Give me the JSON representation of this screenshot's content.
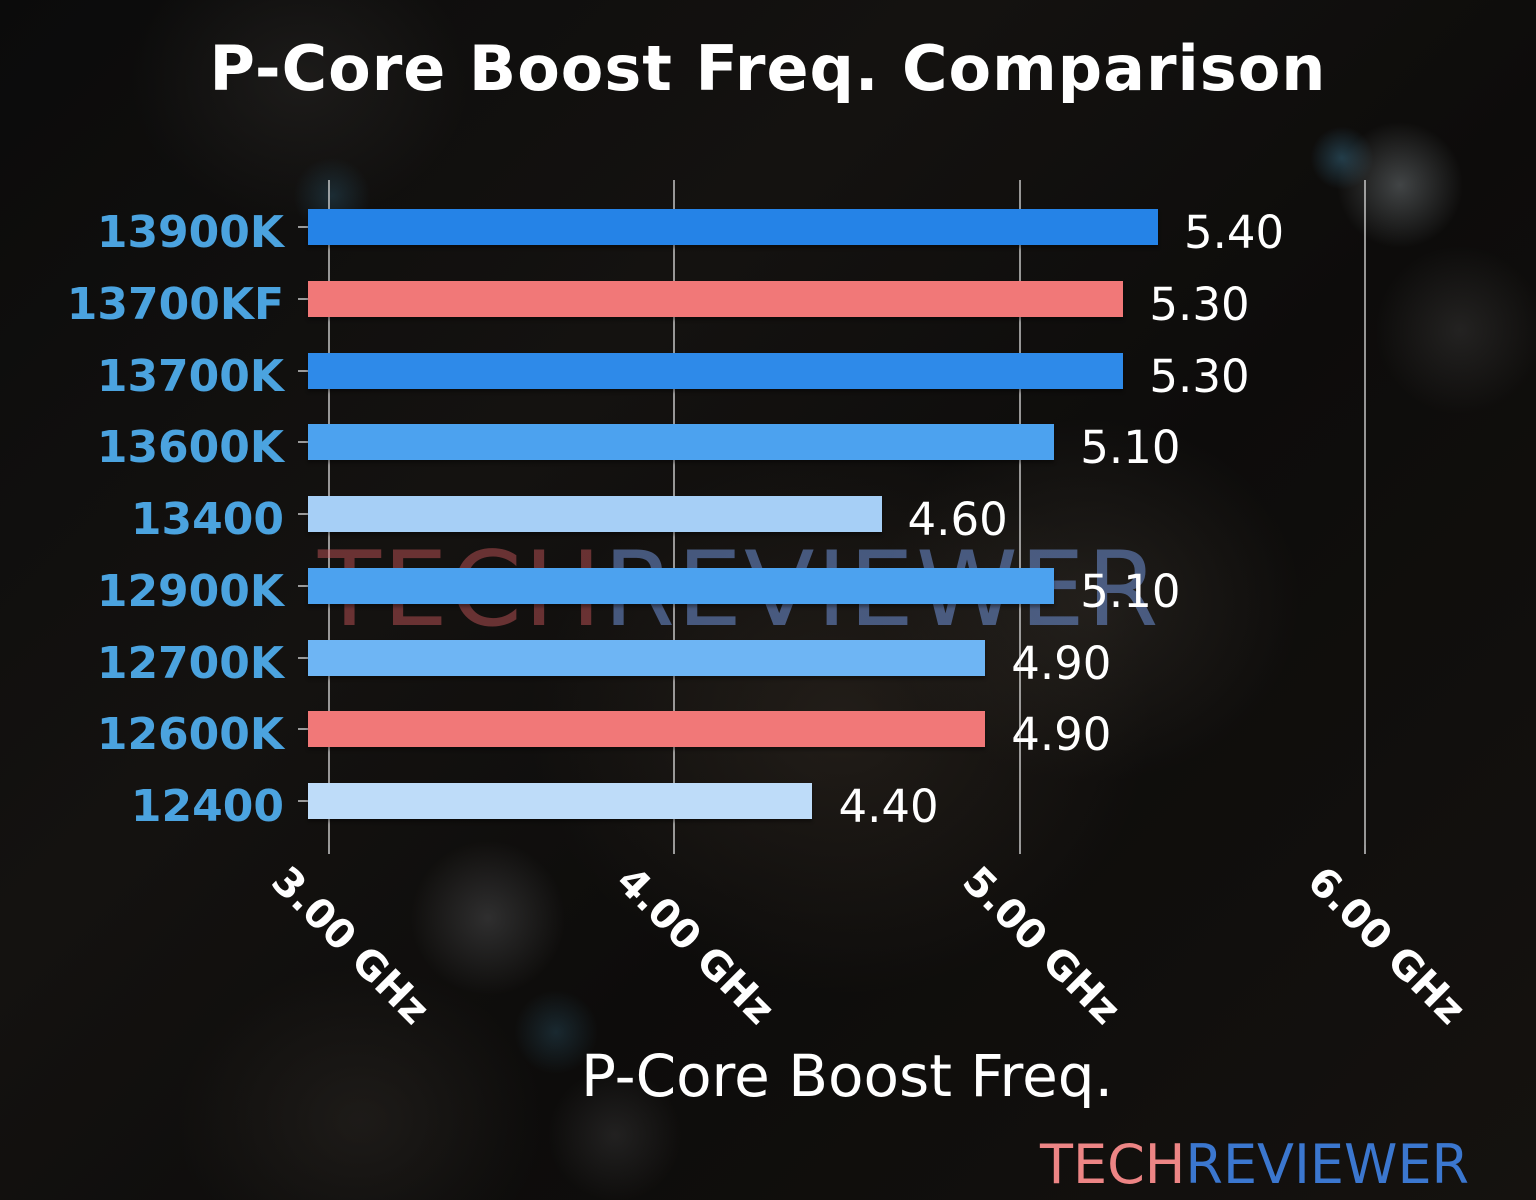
{
  "chart_data": {
    "type": "bar",
    "orientation": "horizontal",
    "title": "P-Core Boost Freq. Comparison",
    "xlabel": "P-Core Boost Freq.",
    "categories": [
      "13900K",
      "13700KF",
      "13700K",
      "13600K",
      "13400",
      "12900K",
      "12700K",
      "12600K",
      "12400"
    ],
    "values": [
      5.4,
      5.3,
      5.3,
      5.1,
      4.6,
      5.1,
      4.9,
      4.9,
      4.4
    ],
    "value_labels": [
      "5.40",
      "5.30",
      "5.30",
      "5.10",
      "4.60",
      "5.10",
      "4.90",
      "4.90",
      "4.40"
    ],
    "bar_colors": [
      "#2583E7",
      "#F17878",
      "#2E8AE9",
      "#4CA2EF",
      "#A6CFF6",
      "#4CA2EF",
      "#6EB5F4",
      "#F17878",
      "#BEDCF9"
    ],
    "highlighted_categories": [
      "13700KF",
      "12600K"
    ],
    "highlight_color": "#F17878",
    "x_tick_values": [
      3,
      4,
      5,
      6
    ],
    "x_tick_labels": [
      "3.00 GHz",
      "4.00 GHz",
      "5.00 GHz",
      "6.00 GHz"
    ],
    "xlim": [
      2.94,
      6.06
    ],
    "grid": true,
    "legend": false,
    "category_label_color": "#4BA3DF",
    "value_label_color": "#FFFFFF",
    "grid_color": "rgba(225,225,225,0.65)"
  },
  "watermark": {
    "part1": "TECH",
    "part2": "REVIEWER"
  },
  "logo": {
    "part1": "TECH",
    "part2": "REVIEWER",
    "part1_color": "#ED8585",
    "part2_color": "#3B77CF"
  }
}
